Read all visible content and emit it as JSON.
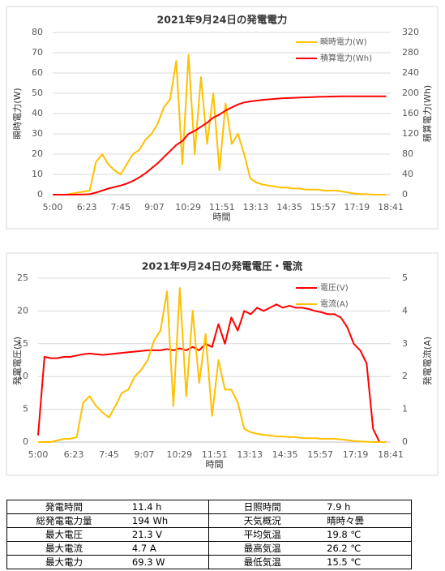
{
  "chart_data": [
    {
      "type": "line",
      "title": "2021年9月24日の発電電力",
      "xlabel": "時間",
      "ylabel": "瞬時電力(W)",
      "y2label": "積算電力(Wh)",
      "x": [
        "5:00",
        "5:15",
        "5:30",
        "5:45",
        "6:00",
        "6:15",
        "6:30",
        "6:45",
        "7:00",
        "7:15",
        "7:30",
        "7:45",
        "8:00",
        "8:15",
        "8:30",
        "8:45",
        "9:00",
        "9:15",
        "9:30",
        "9:45",
        "10:00",
        "10:15",
        "10:30",
        "10:45",
        "11:00",
        "11:15",
        "11:30",
        "11:45",
        "12:00",
        "12:15",
        "12:30",
        "12:45",
        "13:00",
        "13:15",
        "13:30",
        "13:45",
        "14:00",
        "14:15",
        "14:30",
        "14:45",
        "15:00",
        "15:15",
        "15:30",
        "15:45",
        "16:00",
        "16:15",
        "16:30",
        "16:45",
        "17:00",
        "17:15",
        "17:30",
        "17:45",
        "18:00",
        "18:15",
        "18:30"
      ],
      "xlim": [
        "5:00",
        "18:41"
      ],
      "xticks": [
        "5:00",
        "6:23",
        "7:45",
        "9:07",
        "10:29",
        "11:51",
        "13:13",
        "14:35",
        "15:57",
        "17:19",
        "18:41"
      ],
      "ylim": [
        0,
        80
      ],
      "yticks": [
        0,
        10,
        20,
        30,
        40,
        50,
        60,
        70,
        80
      ],
      "y2lim": [
        0,
        320
      ],
      "y2ticks": [
        0,
        40,
        80,
        120,
        160,
        200,
        240,
        280,
        320
      ],
      "grid": true,
      "legend": "upper right",
      "series": [
        {
          "name": "瞬時電力(W)",
          "color": "#ffc000",
          "axis": "y",
          "values": [
            0,
            0,
            0,
            0.5,
            1,
            1.5,
            2,
            16,
            20,
            15,
            12,
            10,
            15,
            20,
            22,
            27,
            30,
            35,
            43,
            47,
            66,
            15,
            69,
            20,
            58,
            25,
            50,
            12,
            45,
            25,
            30,
            20,
            8,
            6,
            5,
            4.5,
            4,
            3.5,
            3.5,
            3,
            3,
            2.5,
            2.5,
            2.5,
            2,
            2,
            2,
            1.5,
            1,
            0.5,
            0.3,
            0.2,
            0,
            0,
            0
          ]
        },
        {
          "name": "積算電力(Wh)",
          "color": "#ff0000",
          "axis": "y2",
          "values": [
            0,
            0,
            0,
            0,
            0.2,
            0.5,
            1,
            4,
            8,
            12,
            15,
            18,
            22,
            27,
            34,
            42,
            52,
            62,
            74,
            86,
            98,
            106,
            120,
            126,
            134,
            142,
            152,
            158,
            166,
            172,
            178,
            182,
            184,
            185.5,
            187,
            188,
            189,
            190,
            190.5,
            191,
            191.5,
            192,
            192.5,
            193,
            193.3,
            193.6,
            193.8,
            194,
            194,
            194,
            194,
            194,
            194,
            194,
            194
          ]
        }
      ]
    },
    {
      "type": "line",
      "title": "2021年9月24日の発電電圧・電流",
      "xlabel": "時間",
      "ylabel": "発電電圧(V)",
      "y2label": "発電電流(A)",
      "x": [
        "5:00",
        "5:15",
        "5:30",
        "5:45",
        "6:00",
        "6:15",
        "6:30",
        "6:45",
        "7:00",
        "7:15",
        "7:30",
        "7:45",
        "8:00",
        "8:15",
        "8:30",
        "8:45",
        "9:00",
        "9:15",
        "9:30",
        "9:45",
        "10:00",
        "10:15",
        "10:30",
        "10:45",
        "11:00",
        "11:15",
        "11:30",
        "11:45",
        "12:00",
        "12:15",
        "12:30",
        "12:45",
        "13:00",
        "13:15",
        "13:30",
        "13:45",
        "14:00",
        "14:15",
        "14:30",
        "14:45",
        "15:00",
        "15:15",
        "15:30",
        "15:45",
        "16:00",
        "16:15",
        "16:30",
        "16:45",
        "17:00",
        "17:15",
        "17:30",
        "17:45",
        "18:00",
        "18:15",
        "18:30"
      ],
      "xlim": [
        "5:00",
        "18:41"
      ],
      "xticks": [
        "5:00",
        "6:23",
        "7:45",
        "9:07",
        "10:29",
        "11:51",
        "13:13",
        "14:35",
        "15:57",
        "17:19",
        "18:41"
      ],
      "ylim": [
        0,
        25
      ],
      "yticks": [
        0,
        5,
        10,
        15,
        20,
        25
      ],
      "y2lim": [
        0,
        5
      ],
      "y2ticks": [
        0,
        1,
        2,
        3,
        4,
        5
      ],
      "grid": true,
      "legend": "upper right",
      "series": [
        {
          "name": "電圧(V)",
          "color": "#ff0000",
          "axis": "y",
          "values": [
            1,
            13,
            12.8,
            12.8,
            13,
            13,
            13.2,
            13.4,
            13.5,
            13.4,
            13.3,
            13.4,
            13.5,
            13.6,
            13.7,
            13.8,
            13.9,
            14,
            14,
            14,
            14.2,
            14,
            14.3,
            14,
            14.5,
            14,
            15,
            14.5,
            18,
            15,
            19,
            17,
            20,
            19.5,
            20.5,
            20,
            20.5,
            21,
            20.5,
            20.8,
            20.5,
            20.5,
            20.3,
            20,
            19.8,
            19.5,
            19.5,
            19,
            17.5,
            15,
            14,
            12,
            2,
            0,
            0
          ]
        },
        {
          "name": "電流(A)",
          "color": "#ffc000",
          "axis": "y2",
          "values": [
            0,
            0,
            0,
            0.05,
            0.1,
            0.1,
            0.15,
            1.2,
            1.4,
            1.1,
            0.9,
            0.75,
            1.1,
            1.5,
            1.6,
            2,
            2.2,
            2.5,
            3.1,
            3.4,
            4.6,
            1.1,
            4.7,
            1.4,
            4,
            1.8,
            3.3,
            0.8,
            2.5,
            1.6,
            1.6,
            1.2,
            0.4,
            0.3,
            0.25,
            0.22,
            0.2,
            0.17,
            0.17,
            0.15,
            0.15,
            0.12,
            0.12,
            0.12,
            0.1,
            0.1,
            0.1,
            0.08,
            0.06,
            0.03,
            0.02,
            0.01,
            0,
            0,
            0
          ]
        }
      ]
    }
  ],
  "table": {
    "rows": [
      [
        "発電時間",
        "11.4 h",
        "日照時間",
        "7.9 h"
      ],
      [
        "総発電電力量",
        "194 Wh",
        "天気概況",
        "晴時々曇"
      ],
      [
        "最大電圧",
        "21.3 V",
        "平均気温",
        "19.8 ℃"
      ],
      [
        "最大電流",
        "4.7 A",
        "最高気温",
        "26.2 ℃"
      ],
      [
        "最大電力",
        "69.3 W",
        "最低気温",
        "15.5 ℃"
      ]
    ]
  }
}
